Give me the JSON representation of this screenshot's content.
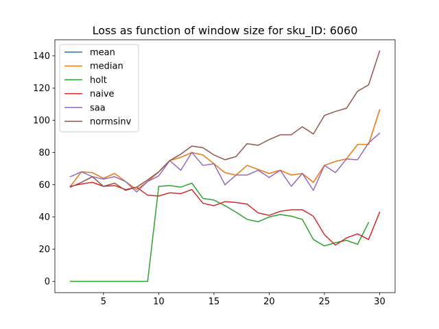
{
  "chart_data": {
    "type": "line",
    "title": "Loss as function of window size for sku_ID: 6060",
    "xlabel": "",
    "ylabel": "",
    "xlim": [
      0.6,
      31.4
    ],
    "ylim": [
      -7,
      150
    ],
    "xticks": [
      5,
      10,
      15,
      20,
      25,
      30
    ],
    "yticks": [
      0,
      20,
      40,
      60,
      80,
      100,
      120,
      140
    ],
    "grid": false,
    "legend_position": "upper-left",
    "x": [
      2,
      3,
      4,
      5,
      6,
      7,
      8,
      9,
      10,
      11,
      12,
      13,
      14,
      15,
      16,
      17,
      18,
      19,
      20,
      21,
      22,
      23,
      24,
      25,
      26,
      27,
      28,
      29,
      30
    ],
    "series": [
      {
        "name": "mean",
        "color": "#1f77b4",
        "values": [
          59,
          68,
          67.5,
          64,
          67,
          62,
          57,
          62,
          68,
          75,
          77,
          80,
          78.5,
          73,
          67.5,
          66,
          72,
          69.5,
          67,
          69,
          66,
          67,
          61.5,
          72,
          74.5,
          76,
          85,
          85,
          106.5
        ]
      },
      {
        "name": "median",
        "color": "#ff7f0e",
        "values": [
          59,
          68,
          67.5,
          64,
          67,
          62,
          57,
          62,
          68,
          75,
          77,
          80,
          78.5,
          73,
          67.5,
          66,
          72,
          69.5,
          67,
          69,
          66,
          67,
          61.5,
          72,
          74.5,
          76,
          85,
          85,
          106.5
        ]
      },
      {
        "name": "holt",
        "color": "#2ca02c",
        "values": [
          0,
          0,
          0,
          0,
          0,
          0,
          0,
          0,
          59,
          59.5,
          58.5,
          61,
          51.5,
          50.5,
          47,
          43,
          38.5,
          37,
          40,
          41.5,
          40.5,
          38.5,
          26,
          22,
          24,
          25.5,
          23,
          36.5,
          null
        ]
      },
      {
        "name": "naive",
        "color": "#d62728",
        "values": [
          59,
          60.5,
          61.5,
          59,
          59.5,
          57,
          58.5,
          53.5,
          53,
          55,
          54.5,
          57,
          48.5,
          47,
          49.5,
          49,
          48,
          42.5,
          41,
          43.5,
          44.5,
          44.5,
          40.5,
          29,
          22.5,
          27,
          29.5,
          26,
          43
        ]
      },
      {
        "name": "saa",
        "color": "#9467bd",
        "values": [
          65,
          68,
          65,
          63.5,
          65,
          62,
          55.5,
          62,
          65.5,
          75,
          69,
          80,
          72,
          73,
          60,
          66,
          66,
          69,
          64.5,
          69,
          59,
          67,
          56.5,
          72,
          67.5,
          76,
          75.5,
          86,
          92
        ]
      },
      {
        "name": "normsinv",
        "color": "#8c564b",
        "values": [
          58.5,
          61.5,
          65,
          59,
          61,
          56.5,
          58.5,
          63,
          68,
          75,
          79,
          84,
          83,
          78.5,
          75.5,
          77.5,
          85.5,
          84.5,
          88,
          91,
          91,
          96,
          91.5,
          103,
          105.5,
          107.5,
          118,
          122,
          143
        ]
      }
    ]
  }
}
